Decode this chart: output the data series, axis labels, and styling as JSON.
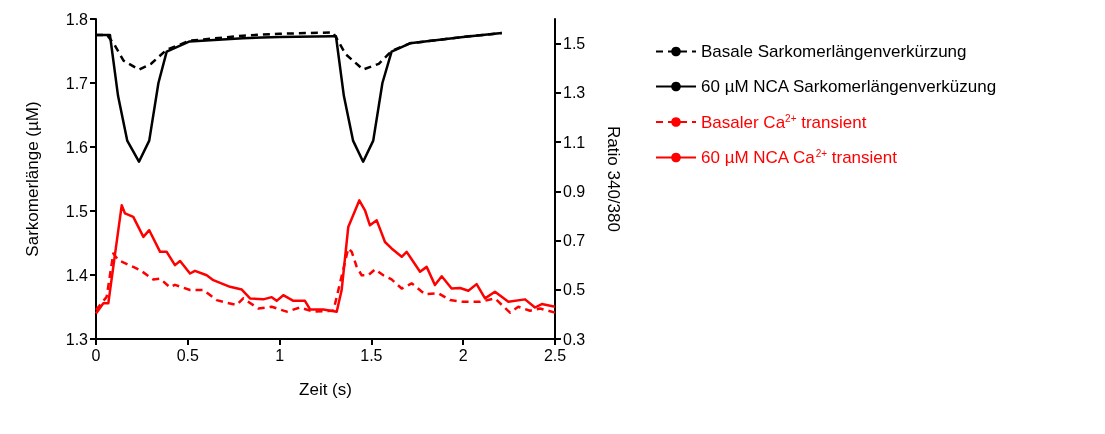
{
  "chart_data": {
    "type": "line",
    "xlabel": "Zeit (s)",
    "ylabel": "Sarkomerlänge (µM)",
    "y2label": "Ratio 340/380",
    "xlim": [
      0,
      2.5
    ],
    "xticks": [
      0,
      0.5,
      1,
      1.5,
      2,
      2.5
    ],
    "ylim": [
      1.3,
      1.8
    ],
    "yticks": [
      1.3,
      1.4,
      1.5,
      1.6,
      1.7,
      1.8
    ],
    "y2lim": [
      0.3,
      1.6
    ],
    "y2ticks": [
      0.3,
      0.5,
      0.7,
      0.9,
      1.1,
      1.3,
      1.5
    ],
    "grid": false,
    "legend": "right",
    "marker": "none",
    "series": [
      {
        "name": "Basale Sarkomerlängenverkürzung",
        "color": "#000000",
        "line_style": "dashed",
        "x": [
          0,
          0.06,
          0.1,
          0.15,
          0.234,
          0.3,
          0.385,
          0.51,
          0.8,
          1.0,
          1.29,
          1.31,
          1.36,
          1.455,
          1.54,
          1.61,
          1.71,
          2.0,
          2.21
        ],
        "values": [
          1.775,
          1.775,
          1.76,
          1.735,
          1.721,
          1.73,
          1.752,
          1.766,
          1.774,
          1.777,
          1.779,
          1.77,
          1.745,
          1.721,
          1.73,
          1.75,
          1.762,
          1.772,
          1.778
        ]
      },
      {
        "name": "60 µM NCA Sarkomerlängenverküzung",
        "color": "#000000",
        "line_style": "solid",
        "x": [
          0,
          0.076,
          0.12,
          0.17,
          0.234,
          0.29,
          0.34,
          0.385,
          0.51,
          0.8,
          1.0,
          1.29,
          1.307,
          1.35,
          1.4,
          1.455,
          1.51,
          1.56,
          1.61,
          1.71,
          2.0,
          2.21
        ],
        "values": [
          1.775,
          1.775,
          1.68,
          1.61,
          1.577,
          1.61,
          1.7,
          1.749,
          1.765,
          1.77,
          1.772,
          1.773,
          1.773,
          1.68,
          1.61,
          1.577,
          1.61,
          1.7,
          1.749,
          1.762,
          1.772,
          1.778
        ]
      },
      {
        "name": "Basaler Ca$^{2+}$ transient",
        "color": "#ff0000",
        "line_style": "dashed",
        "axis": "y2",
        "x": [
          0,
          0.058,
          0.094,
          0.122,
          0.203,
          0.24,
          0.312,
          0.349,
          0.403,
          0.43,
          0.512,
          0.584,
          0.657,
          0.712,
          0.766,
          0.802,
          0.884,
          0.957,
          1.039,
          1.111,
          1.184,
          1.293,
          1.32,
          1.374,
          1.393,
          1.42,
          1.447,
          1.483,
          1.52,
          1.565,
          1.61,
          1.665,
          1.72,
          1.792,
          1.864,
          1.928,
          2.0,
          2.092,
          2.173,
          2.255,
          2.3,
          2.364,
          2.418,
          2.5
        ],
        "values": [
          0.418,
          0.471,
          0.647,
          0.62,
          0.593,
          0.58,
          0.542,
          0.545,
          0.51,
          0.52,
          0.499,
          0.499,
          0.458,
          0.447,
          0.438,
          0.465,
          0.424,
          0.431,
          0.411,
          0.428,
          0.411,
          0.415,
          0.499,
          0.668,
          0.654,
          0.593,
          0.559,
          0.559,
          0.583,
          0.559,
          0.542,
          0.505,
          0.526,
          0.482,
          0.486,
          0.458,
          0.451,
          0.451,
          0.465,
          0.407,
          0.431,
          0.415,
          0.424,
          0.407
        ]
      },
      {
        "name": "60 µM NCA Ca$^{2+}$ transient",
        "color": "#ff0000",
        "line_style": "solid",
        "axis": "y2",
        "x": [
          0,
          0.04,
          0.067,
          0.14,
          0.158,
          0.203,
          0.258,
          0.29,
          0.349,
          0.385,
          0.43,
          0.458,
          0.512,
          0.539,
          0.603,
          0.639,
          0.73,
          0.794,
          0.839,
          0.911,
          0.957,
          0.984,
          1.02,
          1.075,
          1.138,
          1.166,
          1.238,
          1.311,
          1.338,
          1.374,
          1.434,
          1.465,
          1.492,
          1.529,
          1.574,
          1.61,
          1.665,
          1.692,
          1.765,
          1.801,
          1.846,
          1.883,
          1.937,
          1.983,
          2.028,
          2.073,
          2.119,
          2.173,
          2.246,
          2.337,
          2.391,
          2.428,
          2.5
        ],
        "values": [
          0.404,
          0.445,
          0.445,
          0.843,
          0.81,
          0.796,
          0.715,
          0.742,
          0.654,
          0.654,
          0.6,
          0.617,
          0.566,
          0.577,
          0.559,
          0.539,
          0.512,
          0.501,
          0.465,
          0.461,
          0.47,
          0.455,
          0.478,
          0.455,
          0.455,
          0.42,
          0.42,
          0.411,
          0.499,
          0.755,
          0.863,
          0.823,
          0.762,
          0.782,
          0.694,
          0.668,
          0.634,
          0.654,
          0.573,
          0.593,
          0.519,
          0.555,
          0.505,
          0.507,
          0.496,
          0.523,
          0.465,
          0.492,
          0.451,
          0.461,
          0.428,
          0.442,
          0.431
        ]
      }
    ]
  }
}
